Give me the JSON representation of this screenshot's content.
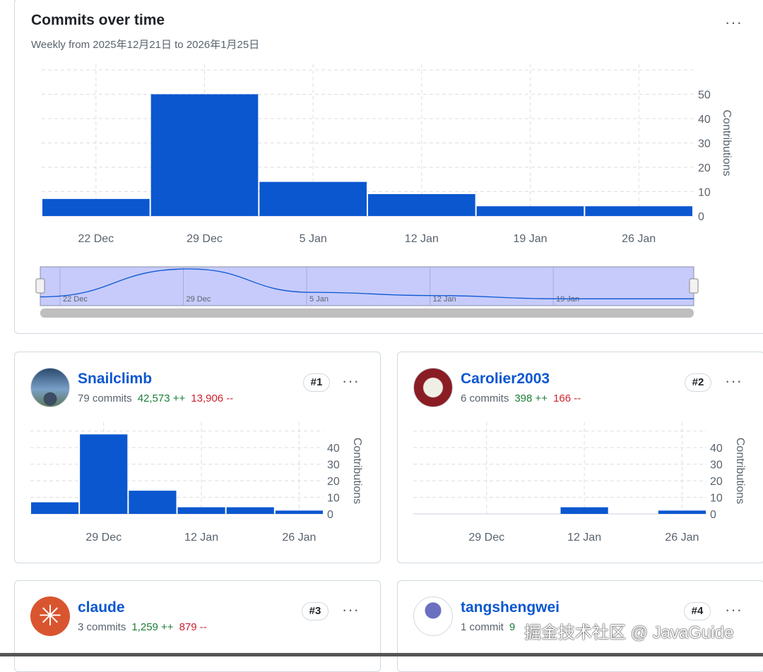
{
  "main": {
    "title": "Commits over time",
    "subtitle": "Weekly from 2025年12月21日 to 2026年1月25日",
    "more_label": "···"
  },
  "chart_data": [
    {
      "type": "bar",
      "title": "Commits over time",
      "ylabel": "Contributions",
      "categories": [
        "22 Dec",
        "29 Dec",
        "5 Jan",
        "12 Jan",
        "19 Jan",
        "26 Jan"
      ],
      "values": [
        7,
        50,
        14,
        9,
        4,
        4
      ],
      "yticks": [
        0,
        10,
        20,
        30,
        40,
        50
      ],
      "ylim": [
        0,
        60
      ],
      "xticks": [
        "22 Dec",
        "29 Dec",
        "5 Jan",
        "12 Jan",
        "19 Jan",
        "26 Jan"
      ],
      "navigator_labels": [
        "22 Dec",
        "29 Dec",
        "5 Jan",
        "12 Jan",
        "19 Jan"
      ],
      "color": "#0b57d0"
    },
    {
      "type": "bar",
      "title": "Snailclimb",
      "ylabel": "Contributions",
      "categories": [
        "22 Dec",
        "29 Dec",
        "5 Jan",
        "12 Jan",
        "19 Jan",
        "26 Jan"
      ],
      "values": [
        7,
        48,
        14,
        4,
        4,
        2
      ],
      "yticks": [
        0,
        10,
        20,
        30,
        40
      ],
      "ylim": [
        0,
        52
      ],
      "xticks": [
        "29 Dec",
        "12 Jan",
        "26 Jan"
      ],
      "color": "#0b57d0"
    },
    {
      "type": "bar",
      "title": "Carolier2003",
      "ylabel": "Contributions",
      "categories": [
        "22 Dec",
        "29 Dec",
        "5 Jan",
        "12 Jan",
        "19 Jan",
        "26 Jan"
      ],
      "values": [
        0,
        0,
        0,
        4,
        0,
        2
      ],
      "yticks": [
        0,
        10,
        20,
        30,
        40
      ],
      "ylim": [
        0,
        52
      ],
      "xticks": [
        "29 Dec",
        "12 Jan",
        "26 Jan"
      ],
      "color": "#0b57d0"
    }
  ],
  "contributors": [
    {
      "name": "Snailclimb",
      "commits": "79 commits",
      "additions": "42,573 ++",
      "deletions": "13,906 --",
      "rank": "#1"
    },
    {
      "name": "Carolier2003",
      "commits": "6 commits",
      "additions": "398 ++",
      "deletions": "166 --",
      "rank": "#2"
    },
    {
      "name": "claude",
      "commits": "3 commits",
      "additions": "1,259 ++",
      "deletions": "879 --",
      "rank": "#3"
    },
    {
      "name": "tangshengwei",
      "commits": "1 commit",
      "additions": "9",
      "deletions": "",
      "rank": "#4"
    }
  ],
  "watermark": "掘金技术社区 @ JavaGuide"
}
